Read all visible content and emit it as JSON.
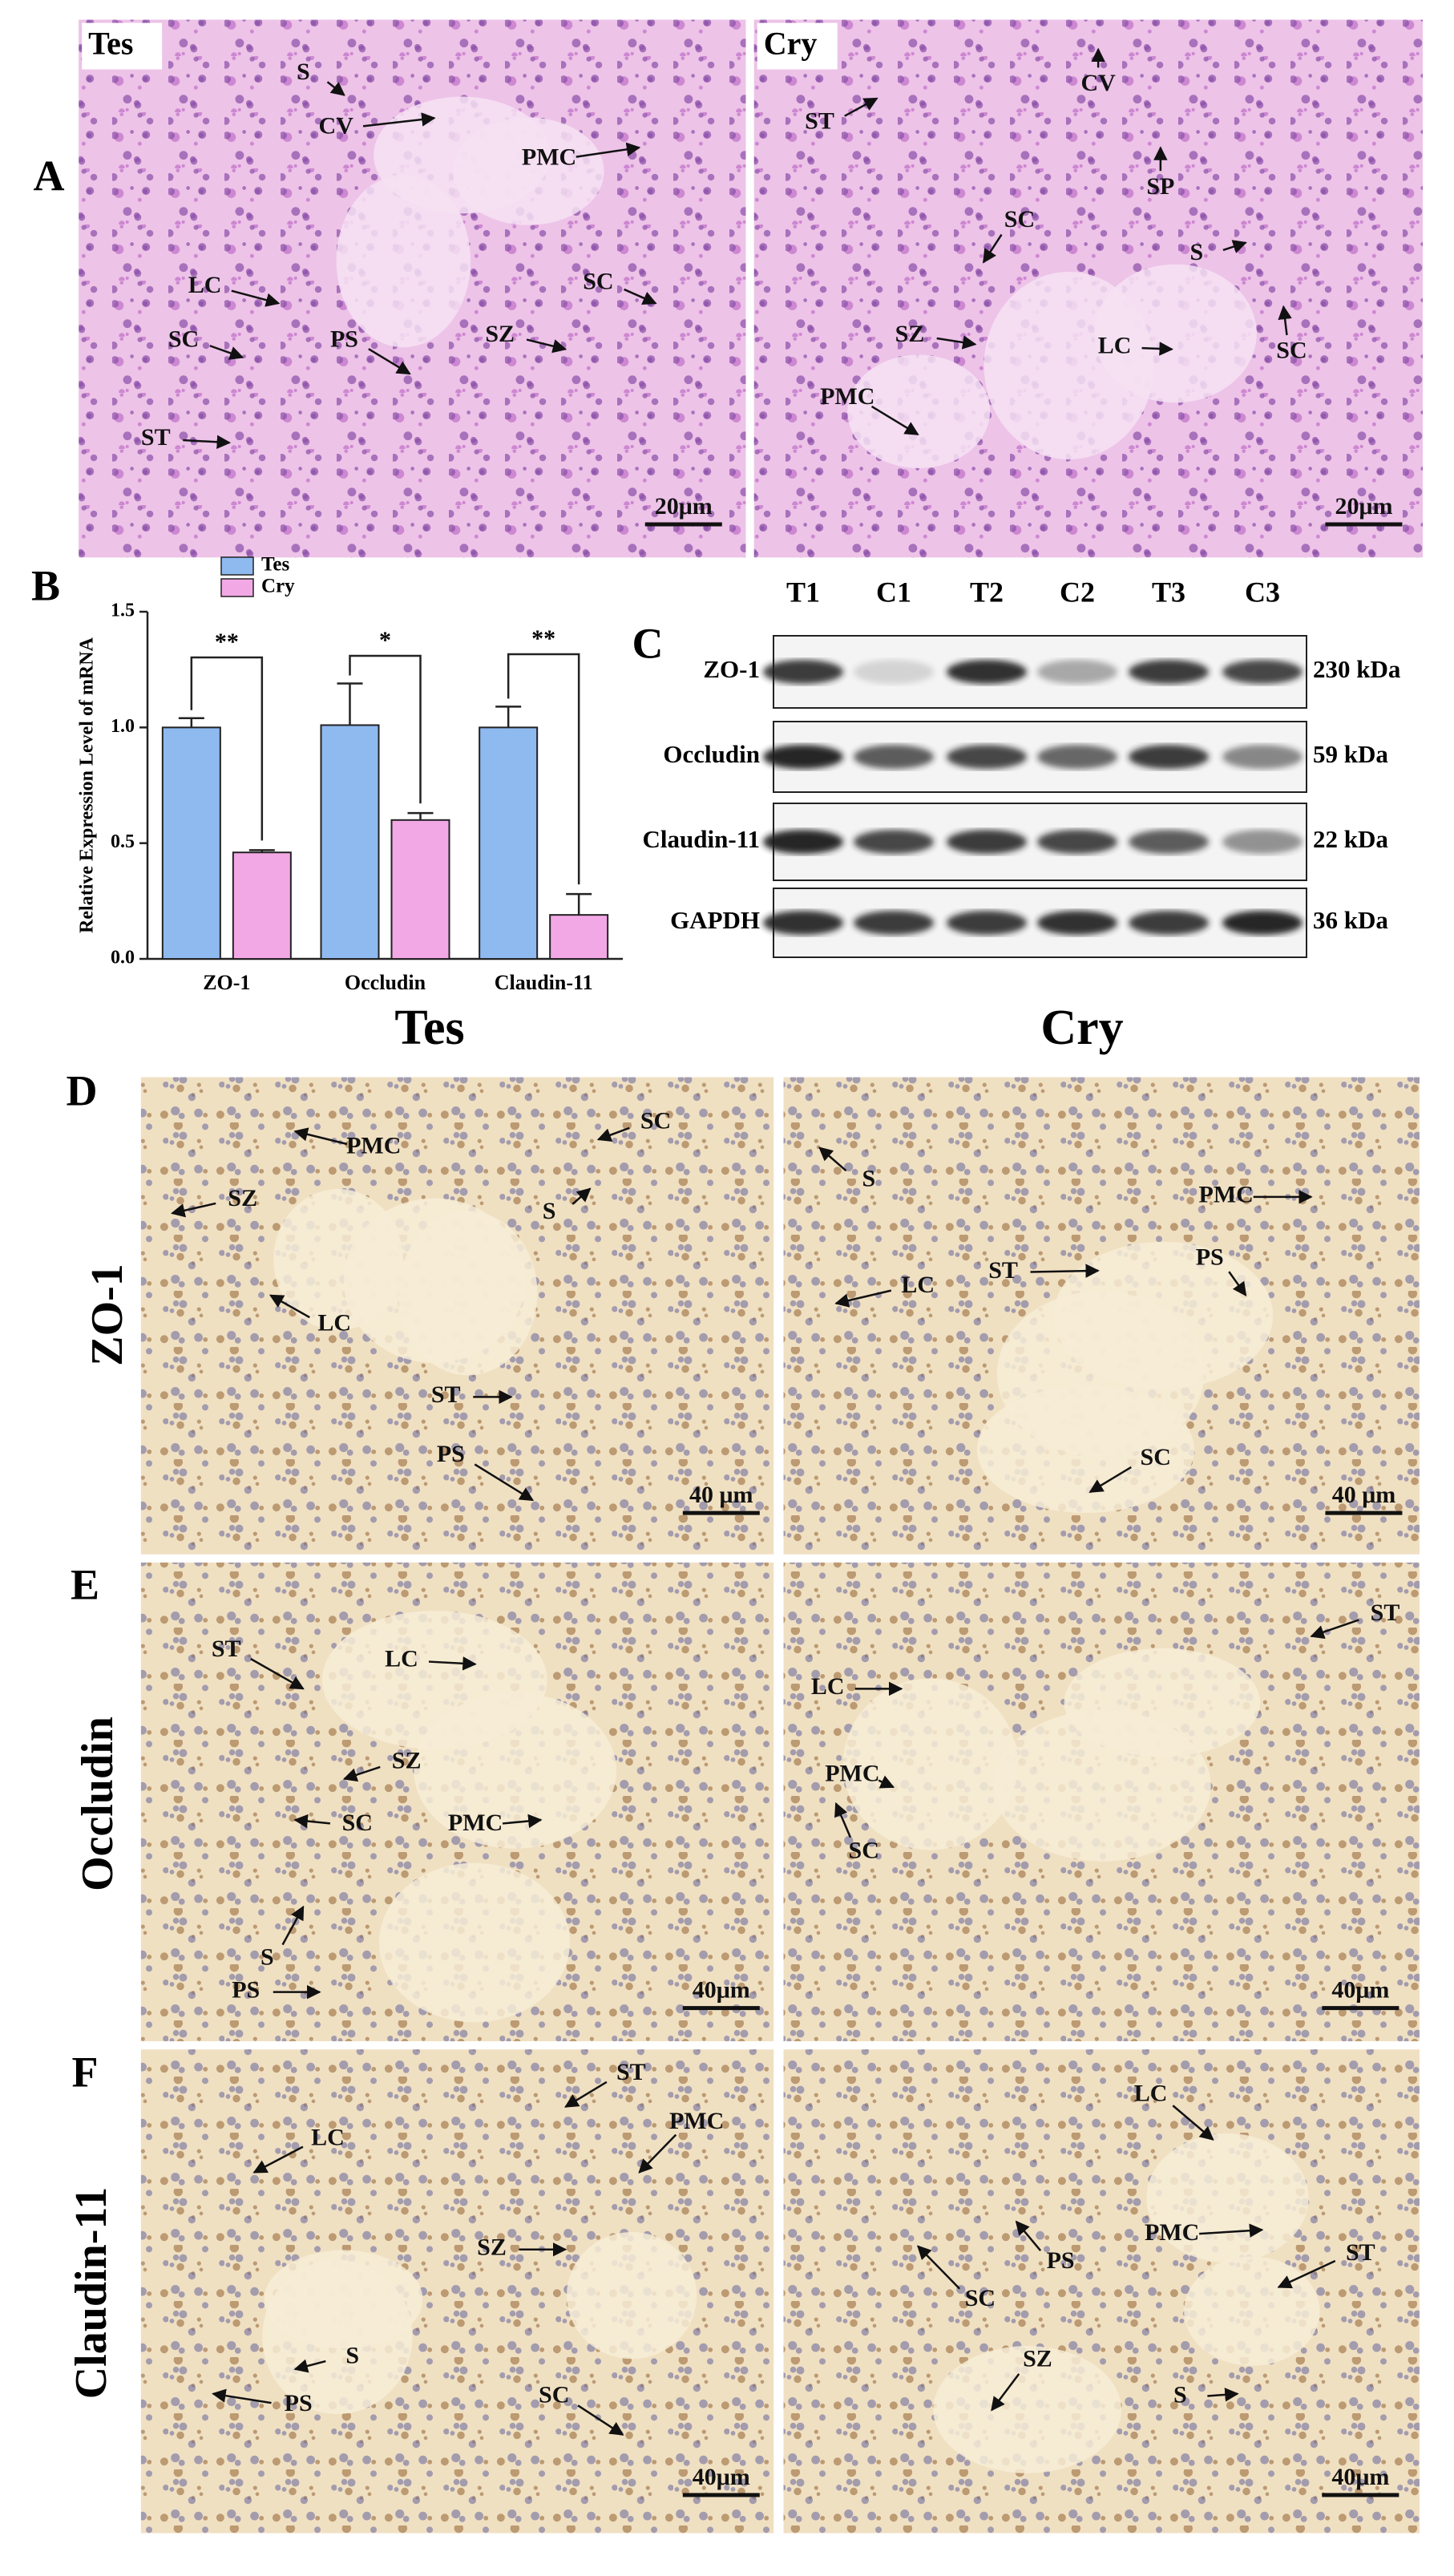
{
  "panel_labels": [
    "A",
    "B",
    "C",
    "D",
    "E",
    "F"
  ],
  "column_headers": [
    "Tes",
    "Cry"
  ],
  "row_labels": [
    "ZO-1",
    "Occludin",
    "Claudin-11"
  ],
  "histology": [
    {
      "corner_label": "Tes",
      "annotations": [
        "S",
        "CV",
        "PMC",
        "LC",
        "SC",
        "PS",
        "SZ",
        "SC",
        "ST"
      ],
      "scale_bar": "20μm"
    },
    {
      "corner_label": "Cry",
      "annotations": [
        "ST",
        "CV",
        "SC",
        "SP",
        "S",
        "SZ",
        "LC",
        "PMC",
        "SC"
      ],
      "scale_bar": "20μm"
    },
    {
      "annotations": [
        "PMC",
        "SC",
        "SZ",
        "S",
        "LC",
        "ST",
        "PS"
      ],
      "scale_bar": "40 μm"
    },
    {
      "annotations": [
        "S",
        "ST",
        "PMC",
        "LC",
        "PS",
        "SC"
      ],
      "scale_bar": "40 μm"
    },
    {
      "annotations": [
        "ST",
        "LC",
        "SZ",
        "SC",
        "PMC",
        "S",
        "PS"
      ],
      "scale_bar": "40μm"
    },
    {
      "annotations": [
        "LC",
        "ST",
        "PMC",
        "SC"
      ],
      "scale_bar": "40μm"
    },
    {
      "annotations": [
        "ST",
        "PMC",
        "LC",
        "SZ",
        "S",
        "PS",
        "SC"
      ],
      "scale_bar": "40μm"
    },
    {
      "annotations": [
        "LC",
        "PS",
        "PMC",
        "ST",
        "SC",
        "SZ",
        "S"
      ],
      "scale_bar": "40μm"
    }
  ],
  "western_blot": {
    "lanes": [
      "T1",
      "C1",
      "T2",
      "C2",
      "T3",
      "C3"
    ],
    "proteins": [
      "ZO-1",
      "Occludin",
      "Claudin-11",
      "GAPDH"
    ],
    "sizes": [
      "230 kDa",
      "59 kDa",
      "22 kDa",
      "36 kDa"
    ]
  },
  "chart_data": {
    "type": "bar",
    "y_label": "Relative Expression  Level of mRNA",
    "categories": [
      "ZO-1",
      "Occludin",
      "Claudin-11"
    ],
    "series": [
      {
        "name": "Tes",
        "color": "#8fbaf0",
        "values": [
          1.0,
          1.01,
          1.0
        ],
        "errors": [
          0.04,
          0.18,
          0.09
        ]
      },
      {
        "name": "Cry",
        "color": "#f3a8e6",
        "values": [
          0.46,
          0.6,
          0.19
        ],
        "errors": [
          0.01,
          0.03,
          0.09
        ]
      }
    ],
    "significance": [
      "**",
      "*",
      "**"
    ],
    "ylim": [
      0,
      1.5
    ],
    "yticks": [
      {
        "value": 0,
        "label": "0.0"
      },
      {
        "value": 0.5,
        "label": "0.5"
      },
      {
        "value": 1,
        "label": "1.0"
      },
      {
        "value": 1.5,
        "label": "1.5"
      }
    ],
    "legend": "top-left"
  }
}
